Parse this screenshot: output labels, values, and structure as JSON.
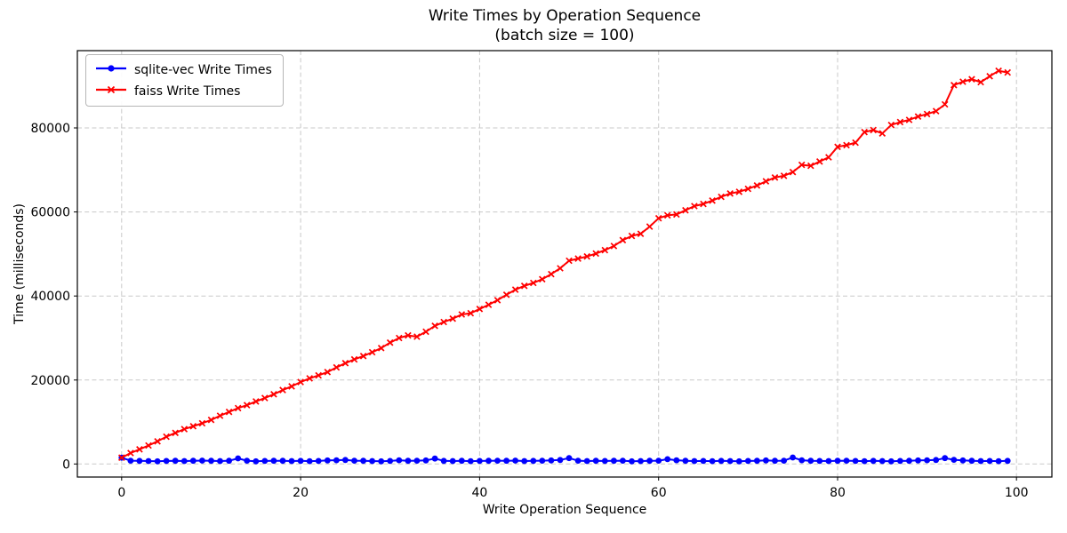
{
  "figure": {
    "kind": "matplotlib-line-chart",
    "background": "#ffffff",
    "grid_color": "#c9c9c9",
    "spine_color": "#000000"
  },
  "chart_data": {
    "type": "line",
    "title": "Write Times by Operation Sequence\n(batch size = 100)",
    "title_line1": "Write Times by Operation Sequence",
    "title_line2": "(batch size = 100)",
    "xlabel": "Write Operation Sequence",
    "ylabel": "Time (milliseconds)",
    "xlim": [
      -4.95,
      103.95
    ],
    "ylim": [
      -3100,
      98400
    ],
    "xticks": [
      0,
      20,
      40,
      60,
      80,
      100
    ],
    "yticks": [
      0,
      20000,
      40000,
      60000,
      80000
    ],
    "grid": true,
    "grid_style": "dashed",
    "legend_position": "upper left",
    "x": [
      0,
      1,
      2,
      3,
      4,
      5,
      6,
      7,
      8,
      9,
      10,
      11,
      12,
      13,
      14,
      15,
      16,
      17,
      18,
      19,
      20,
      21,
      22,
      23,
      24,
      25,
      26,
      27,
      28,
      29,
      30,
      31,
      32,
      33,
      34,
      35,
      36,
      37,
      38,
      39,
      40,
      41,
      42,
      43,
      44,
      45,
      46,
      47,
      48,
      49,
      50,
      51,
      52,
      53,
      54,
      55,
      56,
      57,
      58,
      59,
      60,
      61,
      62,
      63,
      64,
      65,
      66,
      67,
      68,
      69,
      70,
      71,
      72,
      73,
      74,
      75,
      76,
      77,
      78,
      79,
      80,
      81,
      82,
      83,
      84,
      85,
      86,
      87,
      88,
      89,
      90,
      91,
      92,
      93,
      94,
      95,
      96,
      97,
      98,
      99
    ],
    "series": [
      {
        "name": "sqlite-vec Write Times",
        "color": "#0000ff",
        "marker": "circle",
        "values": [
          1500,
          800,
          750,
          700,
          650,
          720,
          780,
          700,
          760,
          820,
          780,
          700,
          760,
          1350,
          800,
          650,
          720,
          780,
          760,
          700,
          740,
          680,
          720,
          850,
          900,
          950,
          800,
          760,
          700,
          650,
          720,
          900,
          760,
          800,
          850,
          1300,
          750,
          700,
          760,
          680,
          720,
          780,
          800,
          760,
          820,
          700,
          750,
          800,
          850,
          950,
          1400,
          800,
          700,
          760,
          720,
          780,
          800,
          650,
          700,
          760,
          800,
          1150,
          900,
          760,
          700,
          720,
          680,
          750,
          700,
          650,
          720,
          780,
          850,
          760,
          800,
          1550,
          900,
          760,
          720,
          700,
          760,
          800,
          720,
          680,
          750,
          700,
          650,
          720,
          780,
          850,
          900,
          950,
          1400,
          1000,
          850,
          760,
          700,
          720,
          680,
          750
        ]
      },
      {
        "name": "faiss Write Times",
        "color": "#ff0000",
        "marker": "x",
        "values": [
          1500,
          2600,
          3500,
          4400,
          5400,
          6500,
          7400,
          8300,
          9000,
          9700,
          10500,
          11500,
          12400,
          13300,
          14000,
          14900,
          15700,
          16600,
          17600,
          18500,
          19500,
          20400,
          21100,
          21900,
          23000,
          24000,
          24900,
          25700,
          26600,
          27600,
          28900,
          30000,
          30600,
          30300,
          31500,
          32900,
          33800,
          34600,
          35600,
          35900,
          36900,
          37900,
          39000,
          40300,
          41500,
          42400,
          43100,
          44000,
          45200,
          46600,
          48400,
          48900,
          49400,
          50100,
          50900,
          51900,
          53300,
          54300,
          54800,
          56500,
          58500,
          59200,
          59400,
          60400,
          61400,
          61900,
          62700,
          63600,
          64400,
          64800,
          65500,
          66300,
          67300,
          68200,
          68600,
          69500,
          71200,
          71000,
          72000,
          73000,
          75500,
          75900,
          76500,
          79000,
          79500,
          78700,
          80700,
          81400,
          81900,
          82700,
          83300,
          84000,
          85600,
          90200,
          91000,
          91600,
          90900,
          92300,
          93600,
          93200
        ]
      }
    ]
  }
}
